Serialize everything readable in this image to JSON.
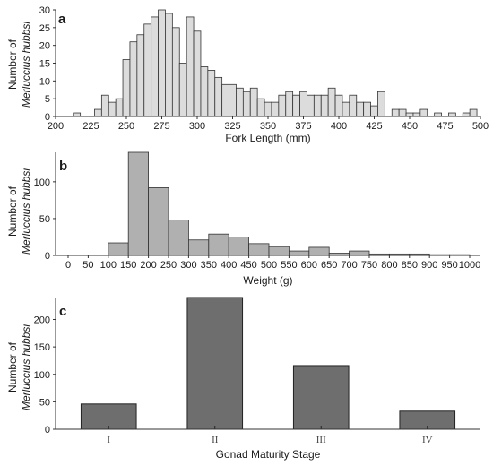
{
  "chart_data": [
    {
      "type": "bar",
      "panel_label": "a",
      "xlabel": "Fork Length (mm)",
      "ylabel_line1": "Number of",
      "ylabel_line2": "Merluccius hubbsi",
      "xlim": [
        200,
        500
      ],
      "ylim": [
        0,
        30
      ],
      "yticks": [
        "0",
        "5",
        "10",
        "15",
        "20",
        "25",
        "30"
      ],
      "xticks": [
        "200",
        "225",
        "250",
        "275",
        "300",
        "325",
        "350",
        "375",
        "400",
        "425",
        "450",
        "475",
        "500"
      ],
      "bin_width": 5,
      "bar_color": "#dcdcdc",
      "bins": [
        {
          "x": 215,
          "y": 1
        },
        {
          "x": 230,
          "y": 2
        },
        {
          "x": 235,
          "y": 6
        },
        {
          "x": 240,
          "y": 4
        },
        {
          "x": 245,
          "y": 5
        },
        {
          "x": 250,
          "y": 16
        },
        {
          "x": 255,
          "y": 21
        },
        {
          "x": 260,
          "y": 23
        },
        {
          "x": 265,
          "y": 26
        },
        {
          "x": 270,
          "y": 28
        },
        {
          "x": 275,
          "y": 30
        },
        {
          "x": 280,
          "y": 29
        },
        {
          "x": 285,
          "y": 25
        },
        {
          "x": 290,
          "y": 15
        },
        {
          "x": 295,
          "y": 28
        },
        {
          "x": 300,
          "y": 24
        },
        {
          "x": 305,
          "y": 14
        },
        {
          "x": 310,
          "y": 13
        },
        {
          "x": 315,
          "y": 11
        },
        {
          "x": 320,
          "y": 9
        },
        {
          "x": 325,
          "y": 9
        },
        {
          "x": 330,
          "y": 8
        },
        {
          "x": 335,
          "y": 7
        },
        {
          "x": 340,
          "y": 8
        },
        {
          "x": 345,
          "y": 5
        },
        {
          "x": 350,
          "y": 4
        },
        {
          "x": 355,
          "y": 4
        },
        {
          "x": 360,
          "y": 6
        },
        {
          "x": 365,
          "y": 7
        },
        {
          "x": 370,
          "y": 6
        },
        {
          "x": 375,
          "y": 7
        },
        {
          "x": 380,
          "y": 6
        },
        {
          "x": 385,
          "y": 6
        },
        {
          "x": 390,
          "y": 6
        },
        {
          "x": 395,
          "y": 8
        },
        {
          "x": 400,
          "y": 6
        },
        {
          "x": 405,
          "y": 4
        },
        {
          "x": 410,
          "y": 6
        },
        {
          "x": 415,
          "y": 4
        },
        {
          "x": 420,
          "y": 4
        },
        {
          "x": 425,
          "y": 3
        },
        {
          "x": 430,
          "y": 7
        },
        {
          "x": 440,
          "y": 2
        },
        {
          "x": 445,
          "y": 2
        },
        {
          "x": 450,
          "y": 1
        },
        {
          "x": 455,
          "y": 1
        },
        {
          "x": 460,
          "y": 2
        },
        {
          "x": 470,
          "y": 1
        },
        {
          "x": 480,
          "y": 1
        },
        {
          "x": 490,
          "y": 1
        },
        {
          "x": 495,
          "y": 2
        }
      ]
    },
    {
      "type": "bar",
      "panel_label": "b",
      "xlabel": "Weight (g)",
      "ylabel_line1": "Number of",
      "ylabel_line2": "Merluccius hubbsi",
      "xlim": [
        0,
        1000
      ],
      "ylim": [
        0,
        140
      ],
      "yticks": [
        "0",
        "50",
        "100"
      ],
      "ytick_values": [
        0,
        50,
        100
      ],
      "xticks": [
        "0",
        "50",
        "100",
        "150",
        "200",
        "250",
        "300",
        "350",
        "400",
        "450",
        "500",
        "550",
        "600",
        "650",
        "700",
        "750",
        "800",
        "850",
        "900",
        "950",
        "1000"
      ],
      "bin_width": 50,
      "bar_color": "#b0b0b0",
      "bins": [
        {
          "x": 75,
          "y": 0
        },
        {
          "x": 125,
          "y": 17
        },
        {
          "x": 175,
          "y": 140
        },
        {
          "x": 225,
          "y": 92
        },
        {
          "x": 275,
          "y": 48
        },
        {
          "x": 325,
          "y": 21
        },
        {
          "x": 375,
          "y": 29
        },
        {
          "x": 425,
          "y": 25
        },
        {
          "x": 475,
          "y": 16
        },
        {
          "x": 525,
          "y": 12
        },
        {
          "x": 575,
          "y": 6
        },
        {
          "x": 625,
          "y": 11
        },
        {
          "x": 675,
          "y": 3
        },
        {
          "x": 725,
          "y": 6
        },
        {
          "x": 775,
          "y": 2
        },
        {
          "x": 825,
          "y": 2
        },
        {
          "x": 875,
          "y": 2
        },
        {
          "x": 925,
          "y": 1
        },
        {
          "x": 975,
          "y": 1
        }
      ]
    },
    {
      "type": "bar",
      "panel_label": "c",
      "xlabel": "Gonad Maturity Stage",
      "ylabel_line1": "Number of",
      "ylabel_line2": "Merluccius hubbsi",
      "ylim": [
        0,
        240
      ],
      "yticks": [
        "0",
        "50",
        "100",
        "150",
        "200"
      ],
      "ytick_values": [
        0,
        50,
        100,
        150,
        200
      ],
      "categories": [
        "I",
        "II",
        "III",
        "IV"
      ],
      "values": [
        46,
        240,
        116,
        33
      ],
      "bar_color": "#6e6e6e"
    }
  ]
}
